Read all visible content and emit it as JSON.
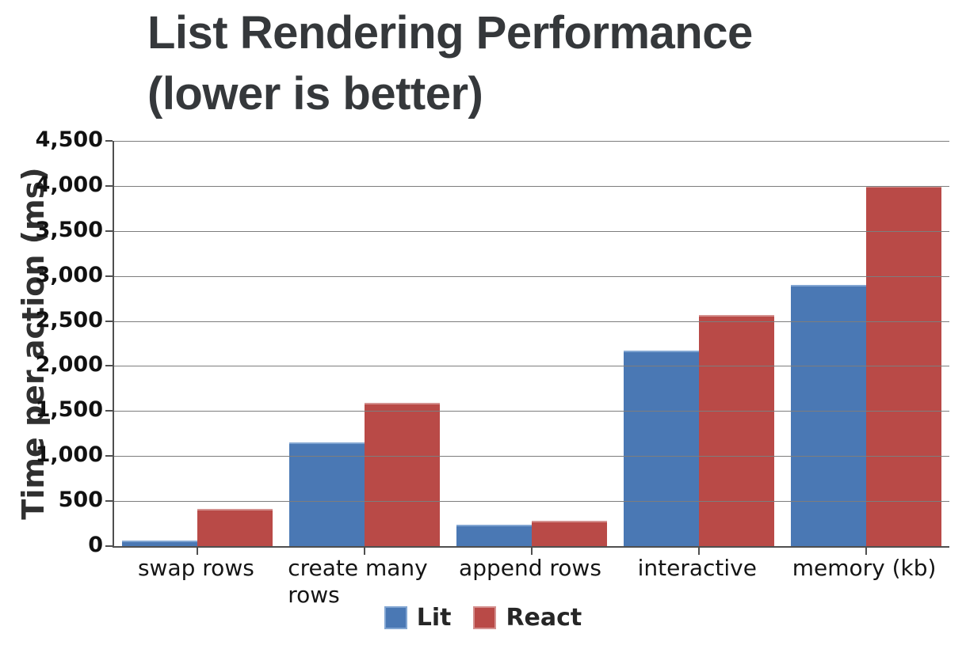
{
  "title": {
    "line1": "List Rendering Performance",
    "line2": "(lower is better)"
  },
  "chart_data": {
    "type": "bar",
    "title": "List Rendering Performance (lower is better)",
    "ylabel": "Time per action (ms)",
    "xlabel": "",
    "categories": [
      "swap rows",
      "create many rows",
      "append rows",
      "interactive",
      "memory (kb)"
    ],
    "series": [
      {
        "name": "Lit",
        "color": "#4a78b4",
        "color_light": "#82a6d2",
        "values": [
          60,
          1150,
          240,
          2170,
          2900
        ]
      },
      {
        "name": "React",
        "color": "#b94a47",
        "color_light": "#d4918f",
        "values": [
          410,
          1590,
          280,
          2570,
          4000
        ]
      }
    ],
    "ylim": [
      0,
      4500
    ],
    "ytick_step": 500,
    "ytick_labels": [
      "4,500",
      "4,000",
      "3,500",
      "3,000",
      "2,500",
      "2,000",
      "1,500",
      "1,000",
      "500",
      "0"
    ],
    "grid": true,
    "legend_position": "bottom",
    "axis_color": "#4f4f4f",
    "grid_color": "#7d7d7d"
  }
}
